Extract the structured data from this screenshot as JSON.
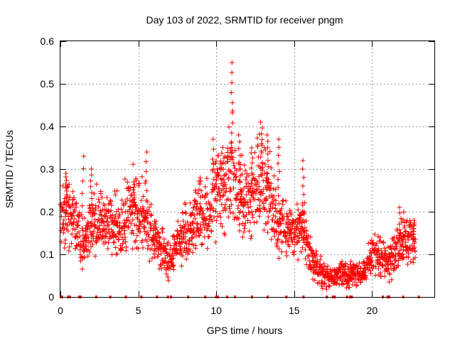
{
  "chart_data": {
    "type": "scatter",
    "title": "Day 103 of 2022, SRMTID for receiver pngm",
    "xlabel": "GPS time / hours",
    "ylabel": "SRMTID / TECUs",
    "xlim": [
      0,
      24
    ],
    "ylim": [
      0,
      0.6
    ],
    "xticks": [
      0,
      5,
      10,
      15,
      20
    ],
    "yticks": [
      0,
      0.1,
      0.2,
      0.3,
      0.4,
      0.5,
      0.6
    ],
    "grid": true,
    "marker": "plus",
    "color": "#ff0000",
    "series": [
      {
        "name": "SRMTID",
        "anchors": [
          {
            "x": 0.0,
            "y": 0.17
          },
          {
            "x": 0.5,
            "y": 0.21
          },
          {
            "x": 1.0,
            "y": 0.17
          },
          {
            "x": 1.5,
            "y": 0.12
          },
          {
            "x": 2.0,
            "y": 0.17
          },
          {
            "x": 2.5,
            "y": 0.18
          },
          {
            "x": 3.0,
            "y": 0.17
          },
          {
            "x": 3.5,
            "y": 0.17
          },
          {
            "x": 4.0,
            "y": 0.16
          },
          {
            "x": 4.5,
            "y": 0.22
          },
          {
            "x": 5.0,
            "y": 0.2
          },
          {
            "x": 5.5,
            "y": 0.18
          },
          {
            "x": 6.0,
            "y": 0.14
          },
          {
            "x": 6.5,
            "y": 0.11
          },
          {
            "x": 7.0,
            "y": 0.08
          },
          {
            "x": 7.5,
            "y": 0.13
          },
          {
            "x": 8.0,
            "y": 0.15
          },
          {
            "x": 8.5,
            "y": 0.17
          },
          {
            "x": 9.0,
            "y": 0.19
          },
          {
            "x": 9.5,
            "y": 0.19
          },
          {
            "x": 10.0,
            "y": 0.26
          },
          {
            "x": 10.5,
            "y": 0.24
          },
          {
            "x": 11.0,
            "y": 0.3
          },
          {
            "x": 11.5,
            "y": 0.23
          },
          {
            "x": 12.0,
            "y": 0.22
          },
          {
            "x": 12.5,
            "y": 0.25
          },
          {
            "x": 13.0,
            "y": 0.27
          },
          {
            "x": 13.5,
            "y": 0.22
          },
          {
            "x": 14.0,
            "y": 0.17
          },
          {
            "x": 14.5,
            "y": 0.16
          },
          {
            "x": 15.0,
            "y": 0.15
          },
          {
            "x": 15.5,
            "y": 0.17
          },
          {
            "x": 16.0,
            "y": 0.1
          },
          {
            "x": 16.5,
            "y": 0.07
          },
          {
            "x": 17.0,
            "y": 0.05
          },
          {
            "x": 17.5,
            "y": 0.05
          },
          {
            "x": 18.0,
            "y": 0.06
          },
          {
            "x": 18.5,
            "y": 0.05
          },
          {
            "x": 19.0,
            "y": 0.05
          },
          {
            "x": 19.5,
            "y": 0.06
          },
          {
            "x": 20.0,
            "y": 0.1
          },
          {
            "x": 20.5,
            "y": 0.1
          },
          {
            "x": 21.0,
            "y": 0.08
          },
          {
            "x": 21.5,
            "y": 0.1
          },
          {
            "x": 22.0,
            "y": 0.13
          },
          {
            "x": 22.5,
            "y": 0.14
          },
          {
            "x": 22.8,
            "y": 0.12
          }
        ],
        "peaks": [
          {
            "x": 0.4,
            "y": 0.29
          },
          {
            "x": 1.45,
            "y": 0.33
          },
          {
            "x": 2.0,
            "y": 0.3
          },
          {
            "x": 4.7,
            "y": 0.27
          },
          {
            "x": 5.5,
            "y": 0.34
          },
          {
            "x": 9.0,
            "y": 0.28
          },
          {
            "x": 9.8,
            "y": 0.37
          },
          {
            "x": 10.5,
            "y": 0.33
          },
          {
            "x": 11.0,
            "y": 0.55
          },
          {
            "x": 11.5,
            "y": 0.38
          },
          {
            "x": 12.3,
            "y": 0.35
          },
          {
            "x": 12.9,
            "y": 0.41
          },
          {
            "x": 13.3,
            "y": 0.38
          },
          {
            "x": 14.0,
            "y": 0.37
          },
          {
            "x": 15.6,
            "y": 0.32
          },
          {
            "x": 21.8,
            "y": 0.21
          },
          {
            "x": 22.7,
            "y": 0.18
          }
        ],
        "gap_marks_x": [
          0.05,
          0.1,
          0.5,
          0.6,
          1.2,
          1.3,
          2.3,
          3.2,
          4.2,
          5.2,
          6.2,
          6.9,
          7.1,
          8.2,
          9.3,
          10.0,
          10.1,
          10.7,
          11.2,
          12.3,
          13.3,
          14.5,
          15.6,
          17.1,
          17.5,
          17.6,
          18.4,
          18.6,
          18.7,
          20.7,
          21.0,
          21.1,
          22.0,
          23.0
        ]
      }
    ]
  }
}
